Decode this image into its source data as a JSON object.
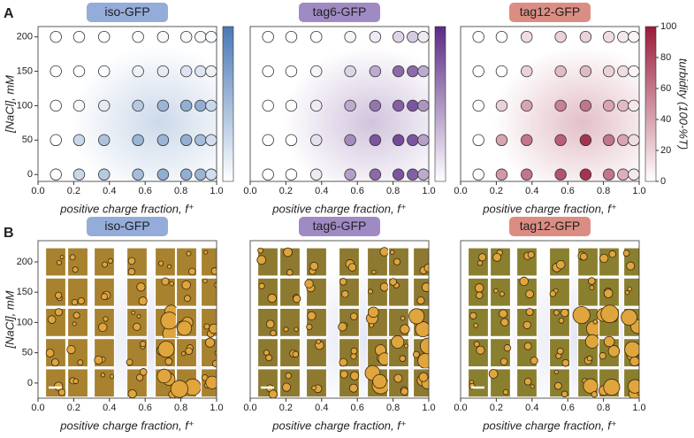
{
  "panel_labels": [
    "A",
    "B"
  ],
  "chart_data": [
    {
      "type": "scatter",
      "title": "iso-GFP",
      "title_color": "#94acd9",
      "color": "#4a78b5",
      "y_label": "[NaCl], mM",
      "x_label": "positive charge fraction, f⁺",
      "xlim": [
        0,
        1
      ],
      "ylim": [
        -10,
        215
      ],
      "xticks": [
        {
          "value": 0,
          "label": "0.0"
        },
        0.2,
        0.4,
        0.6,
        0.8,
        {
          "value": 1,
          "label": "1.0"
        }
      ],
      "yticks": [
        0,
        50,
        100,
        150,
        200
      ],
      "clim": [
        0,
        100
      ],
      "points": {
        "x": [
          0.1,
          0.23,
          0.37,
          0.56,
          0.7,
          0.83,
          0.91,
          0.97,
          0.1,
          0.23,
          0.37,
          0.56,
          0.7,
          0.83,
          0.91,
          0.97,
          0.1,
          0.23,
          0.37,
          0.56,
          0.7,
          0.83,
          0.91,
          0.97,
          0.1,
          0.23,
          0.37,
          0.56,
          0.7,
          0.83,
          0.91,
          0.97,
          0.1,
          0.23,
          0.37,
          0.56,
          0.7,
          0.83,
          0.91,
          0.97
        ],
        "y": [
          200,
          200,
          200,
          200,
          200,
          200,
          200,
          200,
          150,
          150,
          150,
          150,
          150,
          150,
          150,
          150,
          100,
          100,
          100,
          100,
          100,
          100,
          100,
          100,
          50,
          50,
          50,
          50,
          50,
          50,
          50,
          50,
          0,
          0,
          0,
          0,
          0,
          0,
          0,
          0
        ],
        "turbidity": [
          0,
          0,
          0,
          2,
          5,
          5,
          5,
          3,
          0,
          0,
          2,
          10,
          15,
          20,
          20,
          10,
          0,
          5,
          15,
          40,
          55,
          60,
          60,
          30,
          0,
          30,
          45,
          55,
          55,
          60,
          50,
          25,
          0,
          30,
          40,
          50,
          60,
          60,
          55,
          25
        ]
      }
    },
    {
      "type": "scatter",
      "title": "tag6-GFP",
      "title_color": "#a08ac4",
      "color": "#5b2a86",
      "x_label": "positive charge fraction, f⁺",
      "xlim": [
        0,
        1
      ],
      "ylim": [
        -10,
        215
      ],
      "xticks": [
        {
          "value": 0,
          "label": "0.0"
        },
        0.2,
        0.4,
        0.6,
        0.8,
        {
          "value": 1,
          "label": "1.0"
        }
      ],
      "clim": [
        0,
        100
      ],
      "points": {
        "x": [
          0.1,
          0.23,
          0.37,
          0.56,
          0.7,
          0.83,
          0.91,
          0.97,
          0.1,
          0.23,
          0.37,
          0.56,
          0.7,
          0.83,
          0.91,
          0.97,
          0.1,
          0.23,
          0.37,
          0.56,
          0.7,
          0.83,
          0.91,
          0.97,
          0.1,
          0.23,
          0.37,
          0.56,
          0.7,
          0.83,
          0.91,
          0.97,
          0.1,
          0.23,
          0.37,
          0.56,
          0.7,
          0.83,
          0.91,
          0.97
        ],
        "y": [
          200,
          200,
          200,
          200,
          200,
          200,
          200,
          200,
          150,
          150,
          150,
          150,
          150,
          150,
          150,
          150,
          100,
          100,
          100,
          100,
          100,
          100,
          100,
          100,
          50,
          50,
          50,
          50,
          50,
          50,
          50,
          50,
          0,
          0,
          0,
          0,
          0,
          0,
          0,
          0
        ],
        "turbidity": [
          0,
          0,
          0,
          5,
          10,
          20,
          25,
          10,
          0,
          0,
          5,
          20,
          40,
          70,
          70,
          40,
          0,
          0,
          10,
          40,
          65,
          75,
          80,
          50,
          0,
          0,
          15,
          55,
          80,
          85,
          80,
          45,
          0,
          0,
          10,
          45,
          70,
          80,
          75,
          40
        ]
      }
    },
    {
      "type": "scatter",
      "title": "tag12-GFP",
      "title_color": "#dc8d83",
      "color": "#9b1b3a",
      "x_label": "positive charge fraction, f⁺",
      "colorbar_label": "turbidity (100-%T)",
      "xlim": [
        0,
        1
      ],
      "ylim": [
        -10,
        215
      ],
      "xticks": [
        {
          "value": 0,
          "label": "0.0"
        },
        0.2,
        0.4,
        0.6,
        0.8,
        {
          "value": 1,
          "label": "1.0"
        }
      ],
      "clim": [
        0,
        100
      ],
      "cticks": [
        0,
        20,
        40,
        60,
        80,
        100
      ],
      "points": {
        "x": [
          0.1,
          0.23,
          0.37,
          0.56,
          0.7,
          0.83,
          0.91,
          0.97,
          0.1,
          0.23,
          0.37,
          0.56,
          0.7,
          0.83,
          0.91,
          0.97,
          0.1,
          0.23,
          0.37,
          0.56,
          0.7,
          0.83,
          0.91,
          0.97,
          0.1,
          0.23,
          0.37,
          0.56,
          0.7,
          0.83,
          0.91,
          0.97,
          0.1,
          0.23,
          0.37,
          0.56,
          0.7,
          0.83,
          0.91,
          0.97
        ],
        "y": [
          200,
          200,
          200,
          200,
          200,
          200,
          200,
          200,
          150,
          150,
          150,
          150,
          150,
          150,
          150,
          150,
          100,
          100,
          100,
          100,
          100,
          100,
          100,
          100,
          50,
          50,
          50,
          50,
          50,
          50,
          50,
          50,
          0,
          0,
          0,
          0,
          0,
          0,
          0,
          0
        ],
        "turbidity": [
          0,
          0,
          15,
          20,
          20,
          15,
          10,
          5,
          0,
          0,
          20,
          30,
          30,
          20,
          15,
          5,
          0,
          20,
          40,
          55,
          60,
          40,
          30,
          10,
          0,
          40,
          60,
          70,
          90,
          60,
          40,
          15,
          0,
          45,
          60,
          75,
          90,
          60,
          35,
          10
        ]
      }
    },
    {
      "type": "micrographs",
      "title": "iso-GFP",
      "title_color": "#94acd9",
      "y_label": "[NaCl], mM",
      "x_label": "positive charge fraction, f⁺",
      "xlim": [
        0,
        1
      ],
      "ylim": [
        -25,
        235
      ],
      "xticks": [
        {
          "value": 0,
          "label": "0.0"
        },
        0.2,
        0.4,
        0.6,
        0.8,
        {
          "value": 1,
          "label": "1.0"
        }
      ],
      "yticks": [
        0,
        50,
        100,
        150,
        200
      ]
    },
    {
      "type": "micrographs",
      "title": "tag6-GFP",
      "title_color": "#a08ac4",
      "x_label": "positive charge fraction, f⁺",
      "xlim": [
        0,
        1
      ],
      "ylim": [
        -25,
        235
      ],
      "xticks": [
        {
          "value": 0,
          "label": "0.0"
        },
        0.2,
        0.4,
        0.6,
        0.8,
        {
          "value": 1,
          "label": "1.0"
        }
      ]
    },
    {
      "type": "micrographs",
      "title": "tag12-GFP",
      "title_color": "#dc8d83",
      "x_label": "positive charge fraction, f⁺",
      "xlim": [
        0,
        1
      ],
      "ylim": [
        -25,
        235
      ],
      "xticks": [
        {
          "value": 0,
          "label": "0.0"
        },
        0.2,
        0.4,
        0.6,
        0.8,
        {
          "value": 1,
          "label": "1.0"
        }
      ]
    }
  ]
}
